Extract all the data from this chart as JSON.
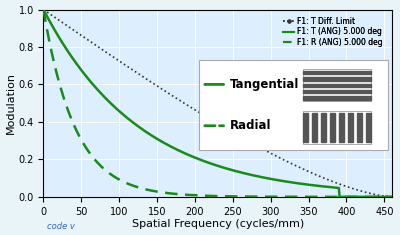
{
  "title": "",
  "xlabel": "Spatial Frequency (cycles/mm)",
  "ylabel": "Modulation",
  "xlim": [
    0,
    460
  ],
  "ylim": [
    0,
    1.0
  ],
  "xticks": [
    0,
    50,
    100,
    150,
    200,
    250,
    300,
    350,
    400,
    450
  ],
  "yticks": [
    0,
    0.2,
    0.4,
    0.6,
    0.8,
    1.0
  ],
  "bg_color": "#ddeeff",
  "plot_bg_color": "#ddeeff",
  "outer_bg_color": "#e8f4f8",
  "diffraction_color": "#333333",
  "tangential_color": "#1a8a1a",
  "radial_color": "#1a8a1a",
  "legend1_labels": [
    "F1: T Diff. Limit",
    "F1: T (ANG) 5.000 deg",
    "F1: R (ANG) 5.000 deg"
  ],
  "legend2_label_tangential": "Tangential",
  "legend2_label_radial": "Radial",
  "font_size": 7,
  "axis_font_size": 7,
  "label_font_size": 8
}
